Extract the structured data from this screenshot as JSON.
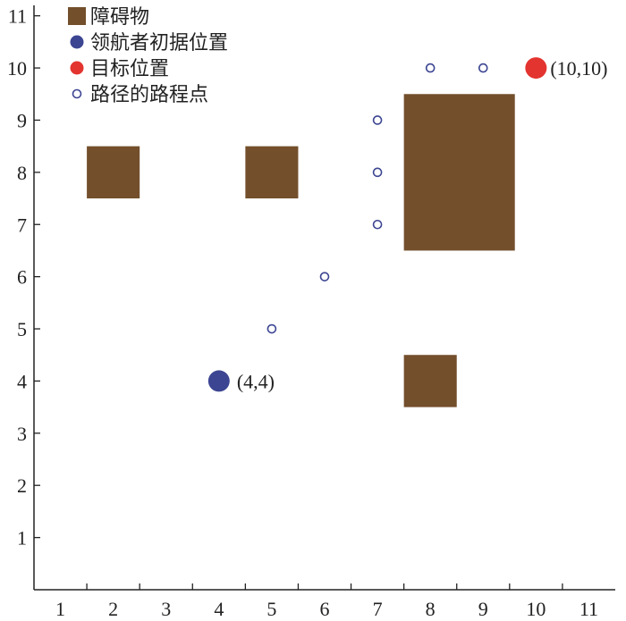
{
  "chart_data": {
    "type": "scatter",
    "xlim": [
      0.5,
      11.5
    ],
    "ylim": [
      0,
      11.2
    ],
    "xticks": [
      1,
      2,
      3,
      4,
      5,
      6,
      7,
      8,
      9,
      10,
      11
    ],
    "yticks": [
      1,
      2,
      3,
      4,
      5,
      6,
      7,
      8,
      9,
      10,
      11
    ],
    "grid": false,
    "legend_position": "top-left",
    "legend": [
      {
        "label": "障碍物",
        "marker": "square",
        "color": "#734F2C"
      },
      {
        "label": "领航者初据位置",
        "marker": "filled-circle",
        "color": "#3C4592"
      },
      {
        "label": "目标位置",
        "marker": "filled-circle",
        "color": "#E3342F"
      },
      {
        "label": "路径的路程点",
        "marker": "open-circle",
        "color": "#3C4592"
      }
    ],
    "obstacles": [
      {
        "x_range": [
          1.5,
          2.5
        ],
        "y_range": [
          7.5,
          8.5
        ]
      },
      {
        "x_range": [
          4.5,
          5.5
        ],
        "y_range": [
          7.5,
          8.5
        ]
      },
      {
        "x_range": [
          7.5,
          9.6
        ],
        "y_range": [
          6.5,
          9.5
        ]
      },
      {
        "x_range": [
          7.5,
          8.5
        ],
        "y_range": [
          3.5,
          4.5
        ]
      }
    ],
    "start": {
      "x": 4,
      "y": 4,
      "label": "(4,4)"
    },
    "goal": {
      "x": 10,
      "y": 10,
      "label": "(10,10)"
    },
    "waypoints": [
      {
        "x": 5,
        "y": 5
      },
      {
        "x": 6,
        "y": 6
      },
      {
        "x": 7,
        "y": 7
      },
      {
        "x": 7,
        "y": 8
      },
      {
        "x": 7,
        "y": 9
      },
      {
        "x": 8,
        "y": 10
      },
      {
        "x": 9,
        "y": 10
      }
    ],
    "colors": {
      "obstacle": "#734F2C",
      "start": "#3C4592",
      "goal": "#E3342F",
      "waypoint": "#3C4592",
      "axis": "#222222"
    }
  }
}
